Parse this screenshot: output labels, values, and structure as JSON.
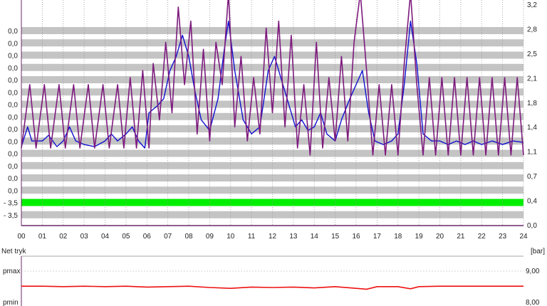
{
  "chart_data": [
    {
      "type": "line",
      "left_axis_labels": [
        "0,0",
        "0,0",
        "0,0",
        "0,0",
        "0,0",
        "0,0",
        "0,0",
        "0,0",
        "0,0",
        "0,0",
        "0,0",
        "0,0",
        "0,0",
        "0,0",
        "- 3,5",
        "- 3,5"
      ],
      "right_ticks": [
        "3,2",
        "2,8",
        "2,5",
        "2,1",
        "1,8",
        "1,4",
        "1,1",
        "0,7",
        "0,4",
        "0,0"
      ],
      "right_ylim": [
        0,
        3.2
      ],
      "xlim": [
        0,
        24
      ],
      "x_ticks": [
        "00",
        "01",
        "02",
        "03",
        "04",
        "05",
        "06",
        "07",
        "08",
        "09",
        "10",
        "11",
        "12",
        "13",
        "14",
        "15",
        "16",
        "17",
        "18",
        "19",
        "20",
        "21",
        "22",
        "23",
        "24"
      ],
      "band_highlight": {
        "index": 14,
        "color": "#00ee00"
      },
      "band_color": "#c4c4c4",
      "series": [
        {
          "color": "#1010d0",
          "points": [
            [
              0,
              1.12
            ],
            [
              0.3,
              1.4
            ],
            [
              0.5,
              1.2
            ],
            [
              1,
              1.2
            ],
            [
              1.3,
              1.28
            ],
            [
              1.7,
              1.12
            ],
            [
              2,
              1.2
            ],
            [
              2.3,
              1.4
            ],
            [
              2.6,
              1.2
            ],
            [
              3,
              1.15
            ],
            [
              3.5,
              1.12
            ],
            [
              4,
              1.2
            ],
            [
              4.3,
              1.3
            ],
            [
              4.6,
              1.2
            ],
            [
              5,
              1.3
            ],
            [
              5.3,
              1.4
            ],
            [
              5.6,
              1.2
            ],
            [
              5.9,
              1.1
            ],
            [
              6.1,
              1.6
            ],
            [
              6.5,
              1.7
            ],
            [
              6.8,
              1.8
            ],
            [
              7.1,
              2.2
            ],
            [
              7.4,
              2.4
            ],
            [
              7.7,
              2.7
            ],
            [
              8,
              2.4
            ],
            [
              8.3,
              1.9
            ],
            [
              8.6,
              1.5
            ],
            [
              9,
              1.35
            ],
            [
              9.4,
              1.8
            ],
            [
              9.7,
              2.5
            ],
            [
              9.9,
              2.9
            ],
            [
              10.2,
              2.2
            ],
            [
              10.6,
              1.5
            ],
            [
              11,
              1.3
            ],
            [
              11.4,
              1.4
            ],
            [
              11.8,
              2.2
            ],
            [
              12.1,
              2.4
            ],
            [
              12.5,
              2.0
            ],
            [
              12.8,
              1.7
            ],
            [
              13.1,
              1.4
            ],
            [
              13.4,
              1.5
            ],
            [
              13.7,
              1.35
            ],
            [
              14,
              1.4
            ],
            [
              14.3,
              1.6
            ],
            [
              14.6,
              1.3
            ],
            [
              15,
              1.2
            ],
            [
              15.3,
              1.5
            ],
            [
              15.7,
              1.8
            ],
            [
              16,
              2.0
            ],
            [
              16.3,
              2.2
            ],
            [
              16.6,
              1.6
            ],
            [
              16.9,
              1.2
            ],
            [
              17.3,
              1.15
            ],
            [
              17.7,
              1.2
            ],
            [
              18,
              1.3
            ],
            [
              18.3,
              2.0
            ],
            [
              18.6,
              2.9
            ],
            [
              18.9,
              2.3
            ],
            [
              19.2,
              1.3
            ],
            [
              19.6,
              1.2
            ],
            [
              20,
              1.2
            ],
            [
              20.4,
              1.15
            ],
            [
              20.8,
              1.2
            ],
            [
              21.2,
              1.15
            ],
            [
              21.6,
              1.2
            ],
            [
              22,
              1.15
            ],
            [
              22.5,
              1.2
            ],
            [
              23,
              1.15
            ],
            [
              23.5,
              1.2
            ],
            [
              24,
              1.18
            ]
          ]
        },
        {
          "color": "#7d1a7d",
          "points": [
            [
              0,
              1.1
            ],
            [
              0.4,
              2.0
            ],
            [
              0.7,
              1.1
            ],
            [
              1.1,
              2.0
            ],
            [
              1.4,
              1.1
            ],
            [
              1.8,
              2.0
            ],
            [
              2.1,
              1.1
            ],
            [
              2.5,
              2.0
            ],
            [
              2.8,
              1.1
            ],
            [
              3.2,
              2.0
            ],
            [
              3.5,
              1.1
            ],
            [
              3.9,
              2.0
            ],
            [
              4.2,
              1.1
            ],
            [
              4.6,
              2.0
            ],
            [
              4.9,
              1.1
            ],
            [
              5.2,
              2.1
            ],
            [
              5.5,
              1.1
            ],
            [
              5.8,
              2.2
            ],
            [
              6.1,
              1.1
            ],
            [
              6.3,
              2.3
            ],
            [
              6.6,
              1.5
            ],
            [
              6.9,
              2.6
            ],
            [
              7.2,
              1.6
            ],
            [
              7.5,
              3.1
            ],
            [
              7.8,
              2.0
            ],
            [
              8.1,
              2.9
            ],
            [
              8.4,
              1.3
            ],
            [
              8.7,
              2.5
            ],
            [
              9,
              1.2
            ],
            [
              9.3,
              2.6
            ],
            [
              9.6,
              2.0
            ],
            [
              9.9,
              3.3
            ],
            [
              10.2,
              1.4
            ],
            [
              10.5,
              2.4
            ],
            [
              10.8,
              1.2
            ],
            [
              11.1,
              2.1
            ],
            [
              11.4,
              1.3
            ],
            [
              11.7,
              2.8
            ],
            [
              12,
              1.6
            ],
            [
              12.3,
              2.9
            ],
            [
              12.6,
              1.4
            ],
            [
              12.9,
              2.7
            ],
            [
              13.2,
              1.1
            ],
            [
              13.5,
              2.0
            ],
            [
              13.8,
              1.0
            ],
            [
              14.1,
              2.6
            ],
            [
              14.4,
              1.1
            ],
            [
              14.7,
              2.1
            ],
            [
              15,
              1.2
            ],
            [
              15.3,
              2.4
            ],
            [
              15.6,
              1.2
            ],
            [
              15.9,
              2.6
            ],
            [
              16.2,
              3.3
            ],
            [
              16.5,
              2.2
            ],
            [
              16.8,
              1.0
            ],
            [
              17.1,
              2.0
            ],
            [
              17.4,
              1.0
            ],
            [
              17.7,
              2.0
            ],
            [
              18,
              1.0
            ],
            [
              18.3,
              2.3
            ],
            [
              18.6,
              3.3
            ],
            [
              18.9,
              2.0
            ],
            [
              19.2,
              1.0
            ],
            [
              19.5,
              2.1
            ],
            [
              19.8,
              1.0
            ],
            [
              20.1,
              2.1
            ],
            [
              20.4,
              1.0
            ],
            [
              20.7,
              2.1
            ],
            [
              21,
              1.0
            ],
            [
              21.3,
              2.1
            ],
            [
              21.6,
              1.0
            ],
            [
              21.9,
              2.1
            ],
            [
              22.2,
              1.0
            ],
            [
              22.5,
              2.1
            ],
            [
              22.8,
              1.0
            ],
            [
              23.1,
              2.1
            ],
            [
              23.4,
              1.0
            ],
            [
              23.7,
              2.1
            ],
            [
              24,
              1.0
            ]
          ]
        }
      ]
    },
    {
      "type": "line",
      "title": "Net tryk",
      "unit": "[bar]",
      "left_labels": [
        "pmax",
        "pmin"
      ],
      "right_ticks": [
        "9,00",
        "8,00"
      ],
      "ylim": [
        8.0,
        9.0
      ],
      "series": [
        {
          "color": "#ee1111",
          "points": [
            [
              0,
              8.38
            ],
            [
              1,
              8.38
            ],
            [
              2,
              8.37
            ],
            [
              3,
              8.38
            ],
            [
              4,
              8.37
            ],
            [
              5,
              8.38
            ],
            [
              6,
              8.36
            ],
            [
              7,
              8.37
            ],
            [
              8,
              8.38
            ],
            [
              9,
              8.35
            ],
            [
              10,
              8.33
            ],
            [
              11,
              8.36
            ],
            [
              12,
              8.35
            ],
            [
              13,
              8.36
            ],
            [
              14,
              8.34
            ],
            [
              15,
              8.37
            ],
            [
              16,
              8.33
            ],
            [
              16.5,
              8.31
            ],
            [
              17,
              8.37
            ],
            [
              18,
              8.37
            ],
            [
              18.6,
              8.32
            ],
            [
              19,
              8.37
            ],
            [
              20,
              8.38
            ],
            [
              21,
              8.38
            ],
            [
              22,
              8.38
            ],
            [
              23,
              8.38
            ],
            [
              24,
              8.38
            ]
          ]
        }
      ]
    }
  ]
}
